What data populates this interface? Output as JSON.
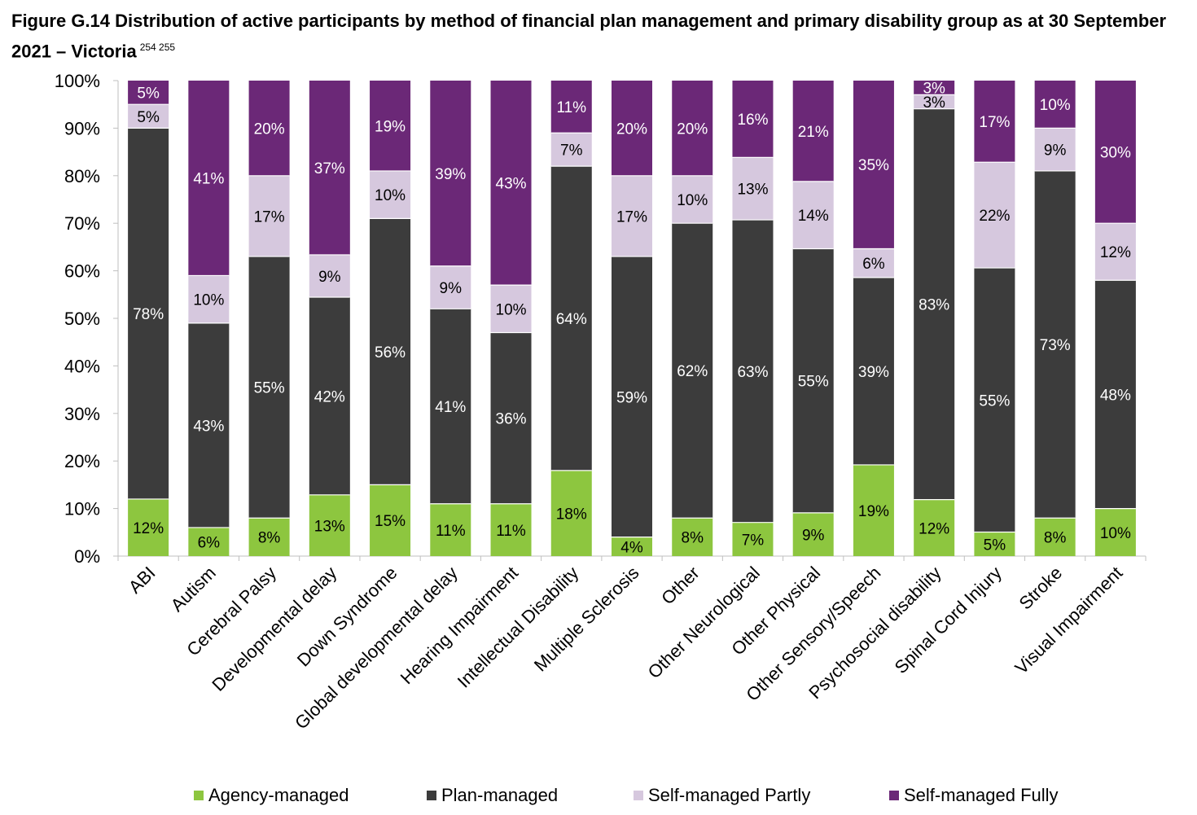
{
  "title": "Figure G.14 Distribution of active participants by method of financial plan management and primary disability group as at 30 September 2021 – Victoria",
  "title_refs": "254  255",
  "chart_data": {
    "type": "bar",
    "stacked": true,
    "percent_stacked": true,
    "categories": [
      "ABI",
      "Autism",
      "Cerebral Palsy",
      "Developmental delay",
      "Down Syndrome",
      "Global developmental delay",
      "Hearing Impairment",
      "Intellectual Disability",
      "Multiple Sclerosis",
      "Other",
      "Other Neurological",
      "Other Physical",
      "Other Sensory/Speech",
      "Psychosocial disability",
      "Spinal Cord Injury",
      "Stroke",
      "Visual Impairment"
    ],
    "series": [
      {
        "name": "Agency-managed",
        "color": "#8DC63F",
        "label_color": "#000000",
        "values": [
          12,
          6,
          8,
          13,
          15,
          11,
          11,
          18,
          4,
          8,
          7,
          9,
          19,
          12,
          5,
          8,
          10
        ],
        "labels": [
          "12%",
          "6%",
          "8%",
          "13%",
          "15%",
          "11%",
          "11%",
          "18%",
          "4%",
          "8%",
          "7%",
          "9%",
          "19%",
          "12%",
          "5%",
          "8%",
          "10%"
        ]
      },
      {
        "name": "Plan-managed",
        "color": "#3C3C3C",
        "label_color": "#FFFFFF",
        "values": [
          78,
          43,
          55,
          42,
          56,
          41,
          36,
          64,
          59,
          62,
          63,
          55,
          39,
          83,
          55,
          73,
          48
        ],
        "labels": [
          "78%",
          "43%",
          "55%",
          "42%",
          "56%",
          "41%",
          "36%",
          "64%",
          "59%",
          "62%",
          "63%",
          "55%",
          "39%",
          "83%",
          "55%",
          "73%",
          "48%"
        ]
      },
      {
        "name": "Self-managed Partly",
        "color": "#D6C8DE",
        "label_color": "#000000",
        "values": [
          5,
          10,
          17,
          9,
          10,
          9,
          10,
          7,
          17,
          10,
          13,
          14,
          6,
          3,
          22,
          9,
          12
        ],
        "labels": [
          "5%",
          "10%",
          "17%",
          "9%",
          "10%",
          "9%",
          "10%",
          "7%",
          "17%",
          "10%",
          "13%",
          "14%",
          "6%",
          "3%",
          "22%",
          "9%",
          "12%"
        ]
      },
      {
        "name": "Self-managed Fully",
        "color": "#6B2877",
        "label_color": "#FFFFFF",
        "values": [
          5,
          41,
          20,
          37,
          19,
          39,
          43,
          11,
          20,
          20,
          16,
          21,
          35,
          3,
          17,
          10,
          30
        ],
        "labels": [
          "5%",
          "41%",
          "20%",
          "37%",
          "19%",
          "39%",
          "43%",
          "11%",
          "20%",
          "20%",
          "16%",
          "21%",
          "35%",
          "3%",
          "17%",
          "10%",
          "30%"
        ]
      }
    ],
    "y_ticks": [
      "0%",
      "10%",
      "20%",
      "30%",
      "40%",
      "50%",
      "60%",
      "70%",
      "80%",
      "90%",
      "100%"
    ],
    "ylim": [
      0,
      100
    ],
    "grid": false,
    "legend_position": "bottom"
  }
}
